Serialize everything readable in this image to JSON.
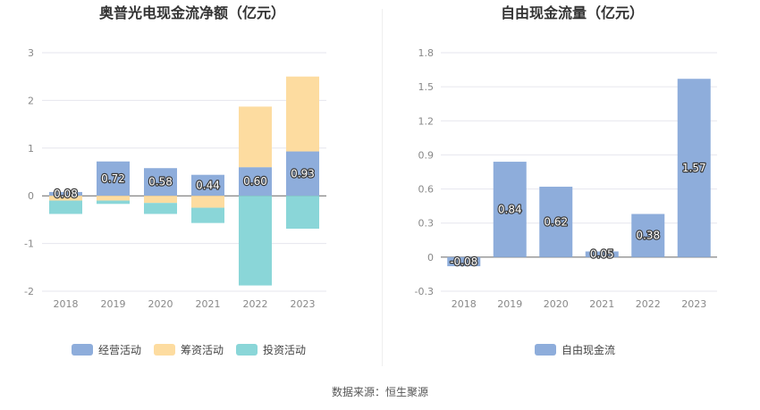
{
  "source": "数据来源：恒生聚源",
  "chart_data": [
    {
      "type": "bar",
      "stacked": true,
      "title": "奥普光电现金流净额（亿元）",
      "categories": [
        "2018",
        "2019",
        "2020",
        "2021",
        "2022",
        "2023"
      ],
      "ylim": [
        -2,
        3
      ],
      "yticks": [
        -2,
        -1,
        0,
        1,
        2,
        3
      ],
      "ytick_labels": [
        "-2",
        "-1",
        "0",
        "1",
        "2",
        "3"
      ],
      "grid": true,
      "legend_position": "bottom",
      "series": [
        {
          "name": "经营活动",
          "color": "#8eaddb",
          "values": [
            0.08,
            0.72,
            0.58,
            0.44,
            0.6,
            0.93
          ],
          "labels": [
            "0.08",
            "0.72",
            "0.58",
            "0.44",
            "0.60",
            "0.93"
          ]
        },
        {
          "name": "筹资活动",
          "color": "#fddca0",
          "values": [
            -0.1,
            -0.1,
            -0.15,
            -0.25,
            1.27,
            1.57
          ]
        },
        {
          "name": "投资活动",
          "color": "#8ad6d8",
          "values": [
            -0.28,
            -0.07,
            -0.23,
            -0.32,
            -1.88,
            -0.69
          ]
        }
      ]
    },
    {
      "type": "bar",
      "title": "自由现金流量（亿元）",
      "categories": [
        "2018",
        "2019",
        "2020",
        "2021",
        "2022",
        "2023"
      ],
      "ylim": [
        -0.3,
        1.8
      ],
      "yticks": [
        -0.3,
        0,
        0.3,
        0.6,
        0.9,
        1.2,
        1.5,
        1.8
      ],
      "ytick_labels": [
        "-0.3",
        "0",
        "0.3",
        "0.6",
        "0.9",
        "1.2",
        "1.5",
        "1.8"
      ],
      "grid": true,
      "legend_position": "bottom",
      "series": [
        {
          "name": "自由现金流",
          "color": "#8eaddb",
          "values": [
            -0.08,
            0.84,
            0.62,
            0.05,
            0.38,
            1.57
          ],
          "labels": [
            "-0.08",
            "0.84",
            "0.62",
            "0.05",
            "0.38",
            "1.57"
          ]
        }
      ]
    }
  ]
}
